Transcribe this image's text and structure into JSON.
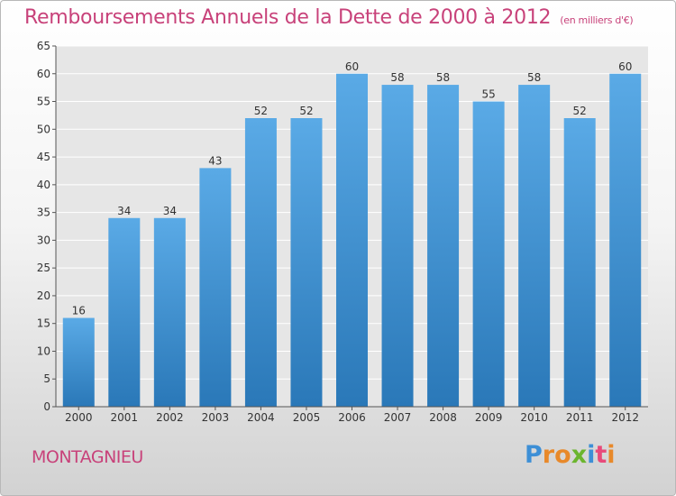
{
  "chart_data": {
    "type": "bar",
    "title": "Remboursements Annuels de la Dette de 2000 à 2012",
    "subtitle": "(en milliers d'€)",
    "categories": [
      "2000",
      "2001",
      "2002",
      "2003",
      "2004",
      "2005",
      "2006",
      "2007",
      "2008",
      "2009",
      "2010",
      "2011",
      "2012"
    ],
    "values": [
      16,
      34,
      34,
      43,
      52,
      52,
      60,
      58,
      58,
      55,
      58,
      52,
      60
    ],
    "ylim": [
      0,
      65
    ],
    "yticks": [
      0,
      5,
      10,
      15,
      20,
      25,
      30,
      35,
      40,
      45,
      50,
      55,
      60,
      65
    ],
    "xlabel": "",
    "ylabel": "",
    "grid": true,
    "bar_color_top": "#5aaae6",
    "bar_color_bottom": "#2a78b8"
  },
  "footer": {
    "commune": "MONTAGNIEU",
    "logo_letters": [
      "P",
      "r",
      "o",
      "x",
      "i",
      "t",
      "i"
    ],
    "logo_colors": [
      "#3d8fd6",
      "#e8892a",
      "#e8892a",
      "#6bb52e",
      "#3d8fd6",
      "#e84a7a",
      "#e8892a"
    ]
  }
}
